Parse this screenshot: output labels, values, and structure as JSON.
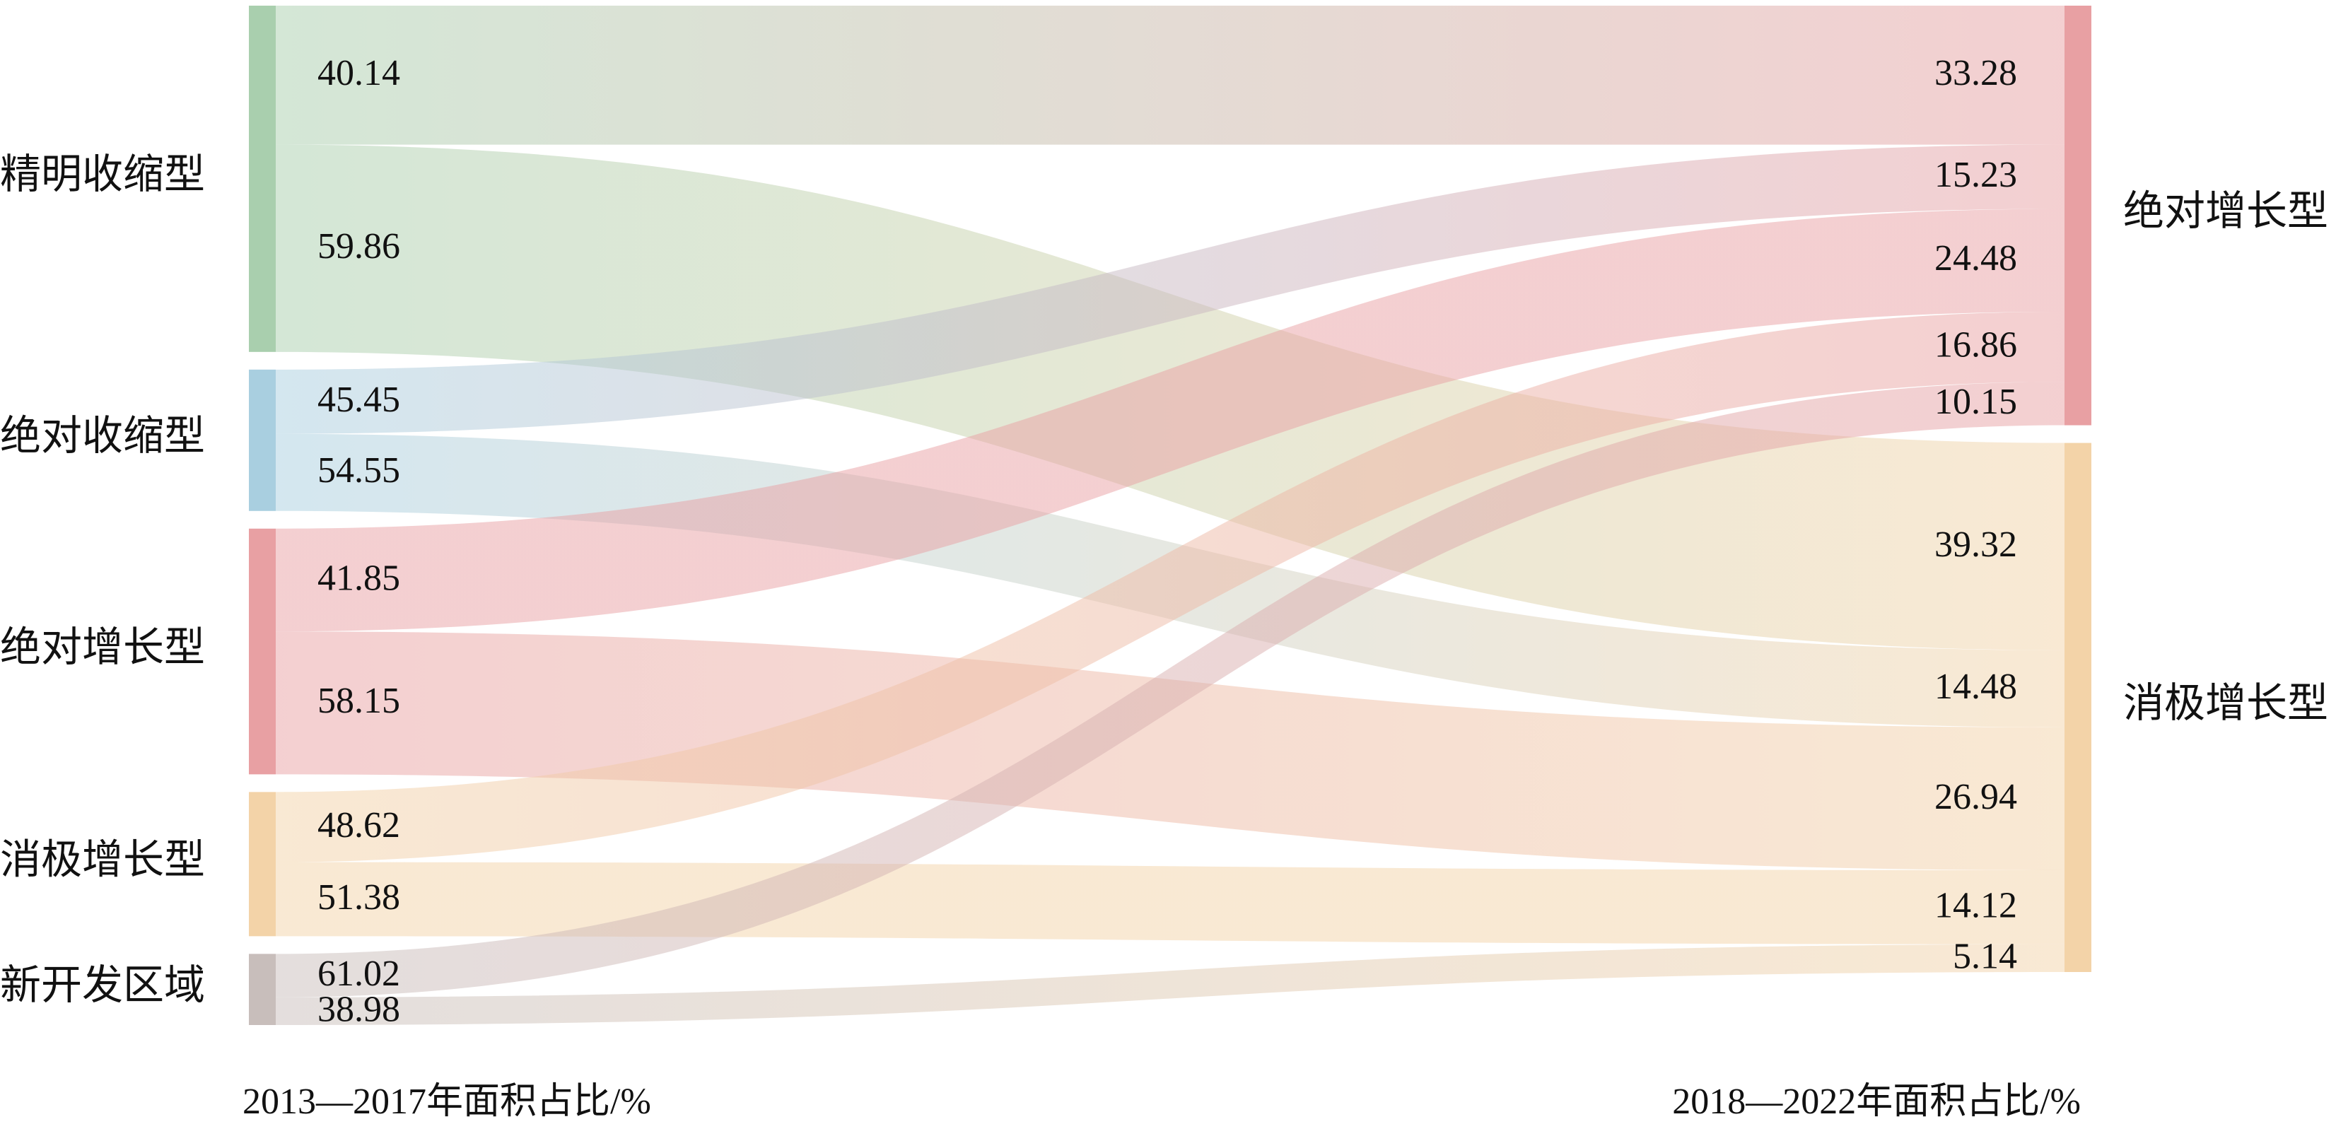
{
  "chart_data": {
    "type": "sankey",
    "source_title": "2013—2017年面积占比/%",
    "target_title": "2018—2022年面积占比/%",
    "left_nodes": [
      {
        "name": "精明收缩型",
        "color": "#a9cfae",
        "value": 36.5
      },
      {
        "name": "绝对收缩型",
        "color": "#a9cfe0",
        "value": 14.9
      },
      {
        "name": "绝对增长型",
        "color": "#e8a0a3",
        "value": 25.9
      },
      {
        "name": "消极增长型",
        "color": "#f3d3a8",
        "value": 15.2
      },
      {
        "name": "新开发区域",
        "color": "#c8bebb",
        "value": 7.5
      }
    ],
    "right_nodes": [
      {
        "name": "绝对增长型",
        "color": "#e8a0a3"
      },
      {
        "name": "消极增长型",
        "color": "#f3d3a8"
      }
    ],
    "flows": [
      {
        "source": 0,
        "target": 0,
        "source_percent": 40.14,
        "target_percent": 33.28
      },
      {
        "source": 0,
        "target": 1,
        "source_percent": 59.86,
        "target_percent": 39.32
      },
      {
        "source": 1,
        "target": 0,
        "source_percent": 45.45,
        "target_percent": 15.23
      },
      {
        "source": 1,
        "target": 1,
        "source_percent": 54.55,
        "target_percent": 14.48
      },
      {
        "source": 2,
        "target": 0,
        "source_percent": 41.85,
        "target_percent": 24.48
      },
      {
        "source": 2,
        "target": 1,
        "source_percent": 58.15,
        "target_percent": 26.94
      },
      {
        "source": 3,
        "target": 0,
        "source_percent": 48.62,
        "target_percent": 16.86
      },
      {
        "source": 3,
        "target": 1,
        "source_percent": 51.38,
        "target_percent": 14.12
      },
      {
        "source": 4,
        "target": 0,
        "source_percent": 61.02,
        "target_percent": 10.15
      },
      {
        "source": 4,
        "target": 1,
        "source_percent": 38.98,
        "target_percent": 5.14
      }
    ]
  }
}
